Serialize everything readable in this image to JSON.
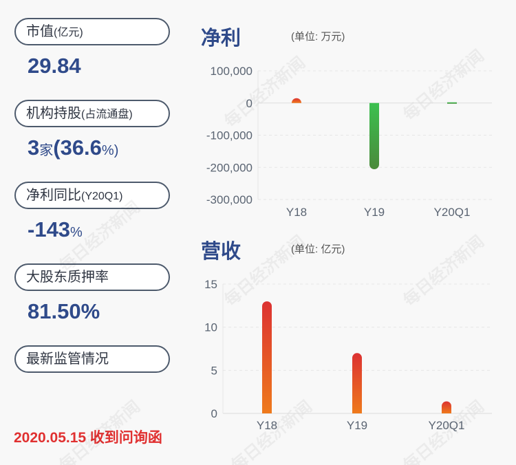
{
  "left": {
    "items": [
      {
        "label": "市值",
        "label_small": "(亿元)",
        "value": "29.84",
        "value_unit": ""
      },
      {
        "label": "机构持股",
        "label_small": "(占流通盘)",
        "value_html": [
          "3",
          "家",
          "(36.6",
          "%)"
        ]
      },
      {
        "label": "净利同比",
        "label_small": "(Y20Q1)",
        "value": "-143",
        "value_unit": "%"
      },
      {
        "label": "大股东质押率",
        "label_small": "",
        "value": "81.50%",
        "value_unit": ""
      },
      {
        "label": "最新监管情况",
        "label_small": ""
      }
    ],
    "date_note": "2020.05.15 收到问询函"
  },
  "chart_data": [
    {
      "type": "bar",
      "title": "净利",
      "unit": "(单位: 万元)",
      "categories": [
        "Y18",
        "Y19",
        "Y20Q1"
      ],
      "values": [
        15000,
        -206000,
        -1000
      ],
      "ylim": [
        -300000,
        100000
      ],
      "yticks": [
        "100,000",
        "0",
        "-100,000",
        "-200,000",
        "-300,000"
      ],
      "grid": true,
      "colors": {
        "positive": "#e04a2a",
        "negative": "#3cb850"
      }
    },
    {
      "type": "bar",
      "title": "营收",
      "unit": "(单位: 亿元)",
      "categories": [
        "Y18",
        "Y19",
        "Y20Q1"
      ],
      "values": [
        13.0,
        7.0,
        1.4
      ],
      "ylim": [
        0,
        15
      ],
      "yticks": [
        "15",
        "10",
        "5",
        "0"
      ],
      "grid": true,
      "colors": {
        "top": "#dc3232",
        "bottom": "#ee7a1c"
      }
    }
  ],
  "watermark": "每日经济新闻"
}
